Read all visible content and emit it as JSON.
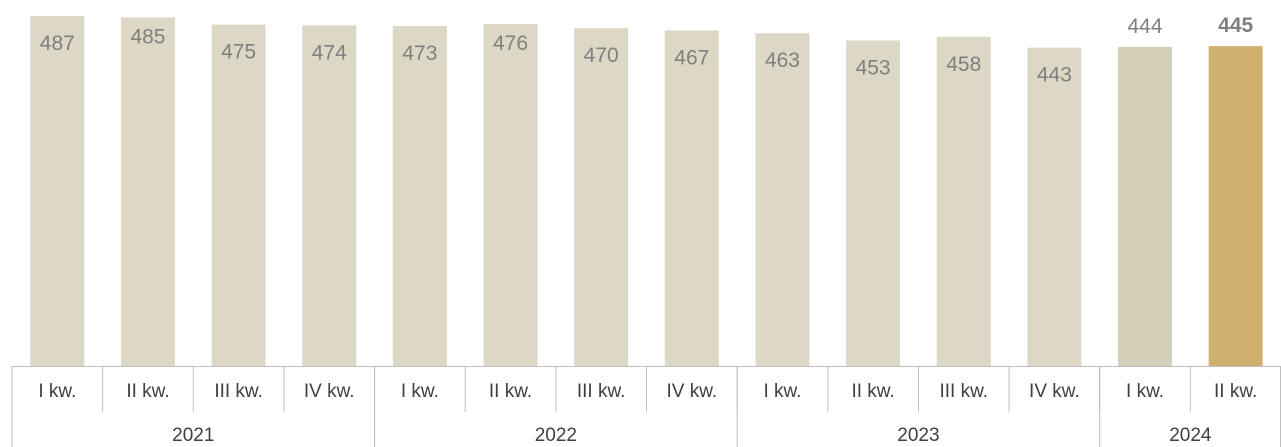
{
  "chart_data": {
    "type": "bar",
    "categories": [
      "I kw.",
      "II kw.",
      "III kw.",
      "IV kw.",
      "I kw.",
      "II kw.",
      "III kw.",
      "IV kw.",
      "I kw.",
      "II kw.",
      "III kw.",
      "IV kw.",
      "I kw.",
      "II kw."
    ],
    "groups": [
      {
        "label": "2021",
        "count": 4
      },
      {
        "label": "2022",
        "count": 4
      },
      {
        "label": "2023",
        "count": 4
      },
      {
        "label": "2024",
        "count": 2
      }
    ],
    "values": [
      487,
      485,
      475,
      474,
      473,
      476,
      470,
      467,
      463,
      453,
      458,
      443,
      444,
      445
    ],
    "highlight_index": 13,
    "colors": {
      "bar": "#dcd8c5",
      "bar_2024": "#d4cfb8",
      "bar_highlight": "#cfb06e",
      "axis": "#bfbfbf"
    },
    "title": "",
    "xlabel": "",
    "ylabel": "",
    "ylim": [
      0,
      487
    ],
    "grid": false,
    "legend": "none"
  }
}
